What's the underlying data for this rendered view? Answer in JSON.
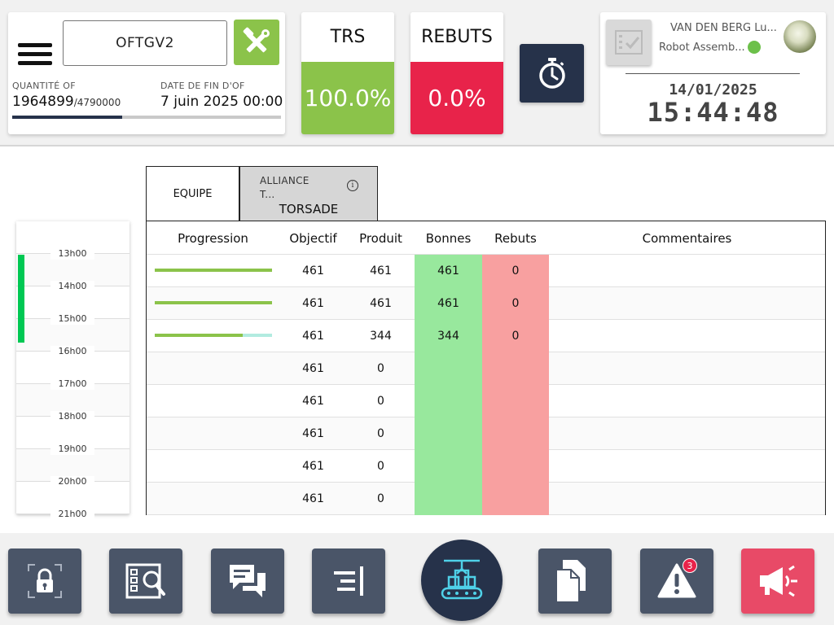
{
  "header": {
    "of_code": "OFTGV2",
    "quantity_label": "QUANTITÉ OF",
    "quantity_done": "1964899",
    "quantity_total": "/4790000",
    "quantity_progress": 0.41,
    "end_date_label": "DATE DE FIN D'OF",
    "end_date_value": "7 juin 2025 00:00"
  },
  "kpis": {
    "trs_label": "TRS",
    "trs_value": "100.0%",
    "rebuts_label": "REBUTS",
    "rebuts_value": "0.0%"
  },
  "user": {
    "name": "VAN DEN BERG Lu...",
    "role": "Robot Assemb...",
    "status_color": "#6cc04a",
    "date": "14/01/2025",
    "time": "15:44:48"
  },
  "tabs": {
    "equipe": "EQUIPE",
    "alliance_label": "ALLIANCE\nT...",
    "alliance_value": "TORSADE"
  },
  "timeline": {
    "hours": [
      "13h00",
      "14h00",
      "15h00",
      "16h00",
      "17h00",
      "18h00",
      "19h00",
      "20h00",
      "21h00"
    ],
    "active_until_row": 3
  },
  "table": {
    "headers": {
      "progression": "Progression",
      "objectif": "Objectif",
      "produit": "Produit",
      "bonnes": "Bonnes",
      "rebuts": "Rebuts",
      "commentaires": "Commentaires"
    },
    "rows": [
      {
        "progress": 1.0,
        "objectif": "461",
        "produit": "461",
        "bonnes": "461",
        "rebuts": "0"
      },
      {
        "progress": 1.0,
        "objectif": "461",
        "produit": "461",
        "bonnes": "461",
        "rebuts": "0"
      },
      {
        "progress": 0.75,
        "objectif": "461",
        "produit": "344",
        "bonnes": "344",
        "rebuts": "0"
      },
      {
        "progress": null,
        "objectif": "461",
        "produit": "0",
        "bonnes": "",
        "rebuts": ""
      },
      {
        "progress": null,
        "objectif": "461",
        "produit": "0",
        "bonnes": "",
        "rebuts": ""
      },
      {
        "progress": null,
        "objectif": "461",
        "produit": "0",
        "bonnes": "",
        "rebuts": ""
      },
      {
        "progress": null,
        "objectif": "461",
        "produit": "0",
        "bonnes": "",
        "rebuts": ""
      },
      {
        "progress": null,
        "objectif": "461",
        "produit": "0",
        "bonnes": "",
        "rebuts": ""
      }
    ]
  },
  "footer": {
    "alerts_count": "3",
    "icons": [
      "lock-icon",
      "checklist-search-icon",
      "chat-icon",
      "align-icon",
      "conveyor-robot-icon",
      "documents-icon",
      "warning-icon",
      "megaphone-icon"
    ]
  },
  "colors": {
    "green": "#8bc34a",
    "red": "#e8234a",
    "navy": "#26324a",
    "slate": "#4a5568"
  }
}
